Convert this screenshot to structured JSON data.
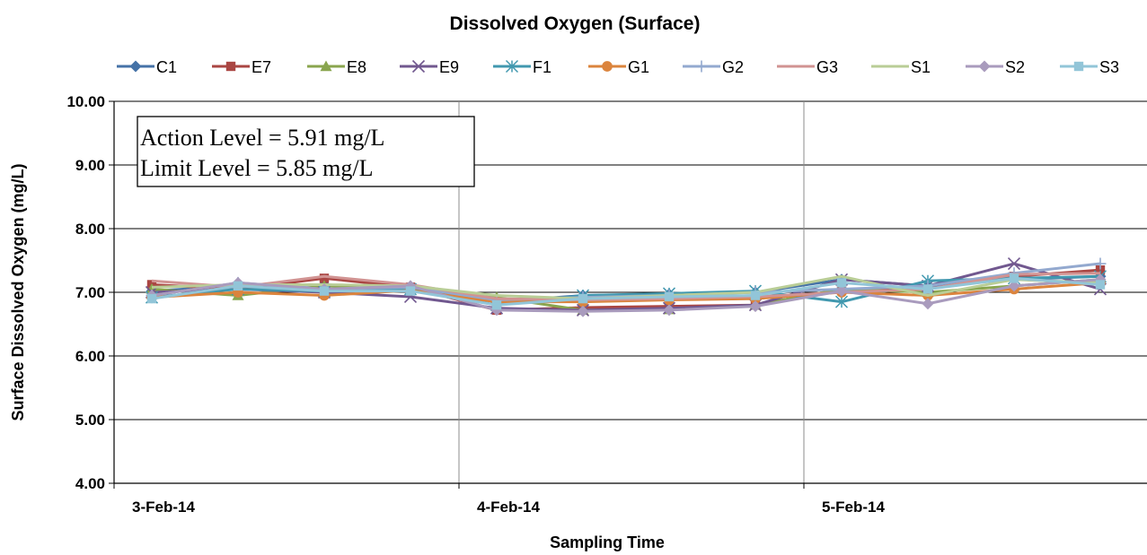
{
  "chart_data": {
    "type": "line",
    "title": "Dissolved Oxygen (Surface)",
    "xlabel": "Sampling Time",
    "ylabel": "Surface Dissolved Oxygen (mg/L)",
    "ylim": [
      4.0,
      10.0
    ],
    "yticks": [
      "4.00",
      "5.00",
      "6.00",
      "7.00",
      "8.00",
      "9.00",
      "10.00"
    ],
    "xticks": [
      "3-Feb-14",
      "4-Feb-14",
      "5-Feb-14"
    ],
    "grid": true,
    "legend_position": "top",
    "annotations": [
      "Action Level = 5.91 mg/L",
      "Limit Level = 5.85 mg/L"
    ],
    "series": [
      {
        "name": "C1",
        "color": "#4572A7",
        "marker": "diamond",
        "values": [
          7.02,
          7.1,
          7.12,
          7.05,
          6.85,
          6.95,
          6.97,
          7.0,
          7.2,
          7.1,
          7.2,
          7.25
        ]
      },
      {
        "name": "E7",
        "color": "#AA4643",
        "marker": "square",
        "values": [
          7.12,
          7.05,
          7.22,
          7.08,
          6.72,
          6.76,
          6.78,
          6.8,
          7.05,
          7.05,
          7.25,
          7.35
        ]
      },
      {
        "name": "E8",
        "color": "#89A54E",
        "marker": "triangle",
        "values": [
          7.05,
          6.95,
          7.1,
          7.08,
          6.92,
          6.72,
          6.73,
          6.8,
          7.05,
          7.0,
          7.1,
          7.2
        ]
      },
      {
        "name": "E9",
        "color": "#71588F",
        "marker": "x",
        "values": [
          7.0,
          7.05,
          7.0,
          6.93,
          6.75,
          6.72,
          6.75,
          6.8,
          7.2,
          7.1,
          7.45,
          7.05
        ]
      },
      {
        "name": "F1",
        "color": "#4198AF",
        "marker": "star",
        "values": [
          6.92,
          7.05,
          7.02,
          7.05,
          6.8,
          6.95,
          6.98,
          7.02,
          6.85,
          7.18,
          7.22,
          7.25
        ]
      },
      {
        "name": "G1",
        "color": "#DB843D",
        "marker": "circle",
        "values": [
          6.92,
          7.0,
          6.95,
          7.03,
          6.85,
          6.85,
          6.88,
          6.9,
          7.0,
          6.95,
          7.05,
          7.15
        ]
      },
      {
        "name": "G2",
        "color": "#93A9CF",
        "marker": "plus",
        "values": [
          6.95,
          7.15,
          7.05,
          7.08,
          6.88,
          6.92,
          6.95,
          7.0,
          7.05,
          7.1,
          7.3,
          7.45
        ]
      },
      {
        "name": "G3",
        "color": "#D19392",
        "marker": "none",
        "values": [
          7.18,
          7.08,
          7.25,
          7.12,
          6.9,
          6.88,
          6.9,
          6.93,
          7.0,
          7.05,
          7.28,
          7.3
        ]
      },
      {
        "name": "S1",
        "color": "#B9CD96",
        "marker": "none",
        "values": [
          7.08,
          7.12,
          7.12,
          7.1,
          6.95,
          6.9,
          6.95,
          7.0,
          7.25,
          6.95,
          7.2,
          7.15
        ]
      },
      {
        "name": "S2",
        "color": "#A99BBD",
        "marker": "diamond",
        "values": [
          6.95,
          7.15,
          7.05,
          7.1,
          6.72,
          6.7,
          6.72,
          6.78,
          7.02,
          6.82,
          7.1,
          7.2
        ]
      },
      {
        "name": "S3",
        "color": "#92C5D8",
        "marker": "square",
        "values": [
          6.9,
          7.1,
          7.02,
          7.02,
          6.8,
          6.9,
          6.93,
          6.95,
          7.15,
          7.05,
          7.22,
          7.12
        ]
      }
    ]
  }
}
